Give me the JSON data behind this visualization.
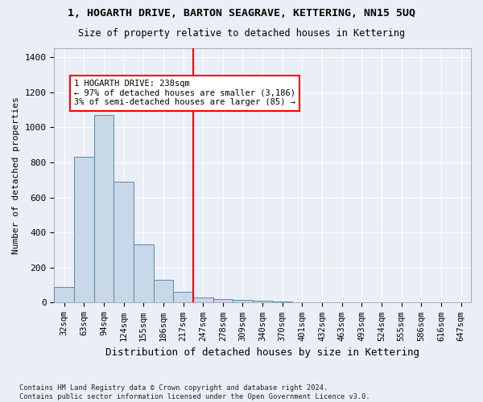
{
  "title_line1": "1, HOGARTH DRIVE, BARTON SEAGRAVE, KETTERING, NN15 5UQ",
  "title_line2": "Size of property relative to detached houses in Kettering",
  "xlabel": "Distribution of detached houses by size in Kettering",
  "ylabel": "Number of detached properties",
  "footnote": "Contains HM Land Registry data © Crown copyright and database right 2024.\nContains public sector information licensed under the Open Government Licence v3.0.",
  "bin_labels": [
    "32sqm",
    "63sqm",
    "94sqm",
    "124sqm",
    "155sqm",
    "186sqm",
    "217sqm",
    "247sqm",
    "278sqm",
    "309sqm",
    "340sqm",
    "370sqm",
    "401sqm",
    "432sqm",
    "463sqm",
    "493sqm",
    "524sqm",
    "555sqm",
    "586sqm",
    "616sqm",
    "647sqm"
  ],
  "bar_heights": [
    90,
    830,
    1070,
    690,
    330,
    130,
    60,
    30,
    20,
    15,
    10,
    5,
    3,
    2,
    1,
    1,
    0,
    0,
    0,
    0,
    0
  ],
  "bar_color": "#c8d8e8",
  "bar_edge_color": "#5588aa",
  "vline_x_index": 7,
  "vline_color": "red",
  "annotation_text": "1 HOGARTH DRIVE: 238sqm\n← 97% of detached houses are smaller (3,186)\n3% of semi-detached houses are larger (85) →",
  "annotation_box_color": "red",
  "ylim": [
    0,
    1450
  ],
  "yticks": [
    0,
    200,
    400,
    600,
    800,
    1000,
    1200,
    1400
  ],
  "background_color": "#eaeff7",
  "grid_color": "white",
  "figsize": [
    6.0,
    5.0
  ],
  "dpi": 100
}
